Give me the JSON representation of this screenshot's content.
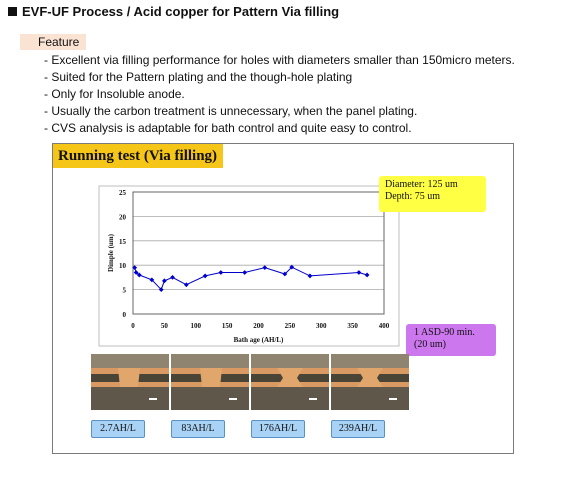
{
  "header": {
    "title": "EVF-UF Process / Acid copper for Pattern Via filling"
  },
  "feature": {
    "tag": "Feature",
    "items": [
      "- Excellent via filling performance for holes with diameters smaller than 150micro meters.",
      "- Suited for the Pattern plating and the though-hole plating",
      "- Only for Insoluble anode.",
      "- Usually the carbon treatment is unnecessary, when the panel plating.",
      "- CVS analysis is adaptable for bath control and quite easy to control."
    ]
  },
  "panel": {
    "title": "Running test (Via filling)",
    "callout_diameter": {
      "line1": "Diameter: 125 um",
      "line2": "Depth: 75 um",
      "color": "#ffff44"
    },
    "callout_asd": {
      "line1": "1 ASD-90 min.",
      "line2": "(20 um)",
      "color": "#cc77ee"
    },
    "photos": [
      {
        "label": "2.7AH/L"
      },
      {
        "label": "83AH/L"
      },
      {
        "label": "176AH/L"
      },
      {
        "label": "239AH/L"
      }
    ]
  },
  "chart_data": {
    "type": "line",
    "title": "",
    "xlabel": "Bath age (AH/L)",
    "ylabel": "Dimple (um)",
    "xlim": [
      0,
      400
    ],
    "ylim": [
      0,
      25
    ],
    "xticks": [
      0,
      50,
      100,
      150,
      200,
      250,
      300,
      350,
      400
    ],
    "yticks": [
      0,
      5,
      10,
      15,
      20,
      25
    ],
    "grid": "horizontal",
    "series": [
      {
        "color": "#0000cc",
        "x": [
          2.7,
          5,
          10,
          30,
          45,
          50,
          63,
          85,
          115,
          140,
          178,
          210,
          242,
          253,
          282,
          360,
          373
        ],
        "y": [
          9.5,
          8.5,
          8.0,
          7.0,
          5.0,
          6.8,
          7.5,
          6.0,
          7.8,
          8.5,
          8.5,
          9.5,
          8.2,
          9.6,
          7.8,
          8.5,
          8.0
        ]
      }
    ]
  }
}
